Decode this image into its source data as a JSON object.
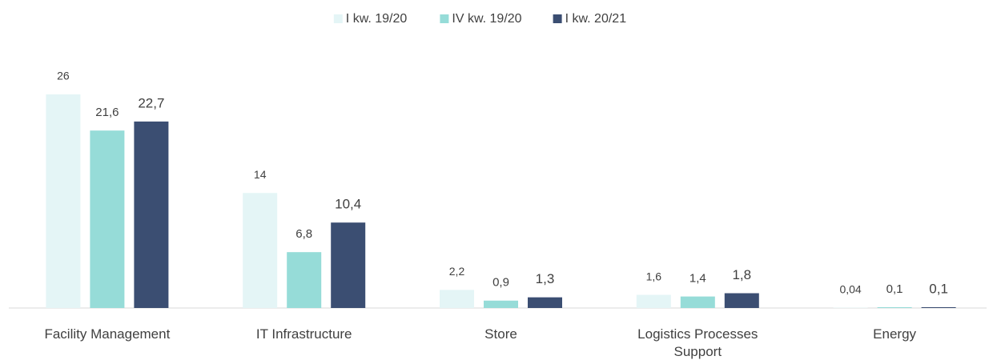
{
  "chart_data": {
    "type": "bar",
    "categories": [
      "Facility Management",
      "IT Infrastructure",
      "Store",
      "Logistics Processes Support",
      "Energy"
    ],
    "series": [
      {
        "name": "I kw. 19/20",
        "color": "#e4f5f6",
        "values": [
          26,
          14,
          2.2,
          1.6,
          0.04
        ],
        "value_labels": [
          "26",
          "14",
          "2,2",
          "1,6",
          "0,04"
        ]
      },
      {
        "name": "IV kw. 19/20",
        "color": "#96dcd8",
        "values": [
          21.6,
          6.8,
          0.9,
          1.4,
          0.1
        ],
        "value_labels": [
          "21,6",
          "6,8",
          "0,9",
          "1,4",
          "0,1"
        ]
      },
      {
        "name": "I kw. 20/21",
        "color": "#3b4e72",
        "values": [
          22.7,
          10.4,
          1.3,
          1.8,
          0.1
        ],
        "value_labels": [
          "22,7",
          "10,4",
          "1,3",
          "1,8",
          "0,1"
        ]
      }
    ],
    "legend": "top"
  }
}
